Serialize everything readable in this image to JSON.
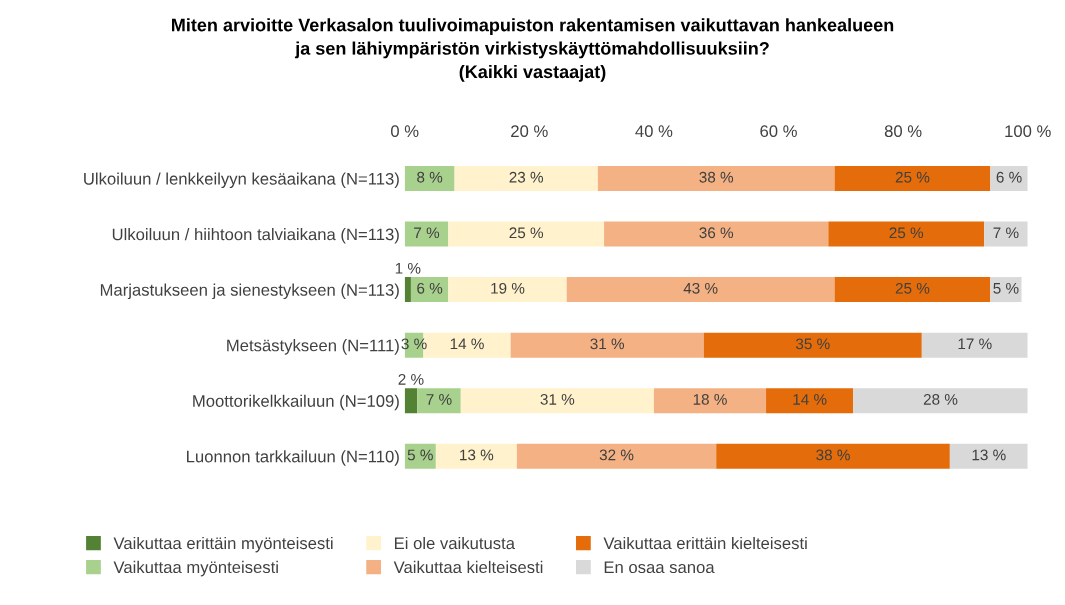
{
  "chart_data": {
    "type": "bar",
    "orientation": "horizontal",
    "stacked": true,
    "title": "Miten arvioitte Verkasalon tuulivoimapuiston rakentamisen vaikuttavan hankealueen\nja sen lähiympäristön virkistyskäyttömahdollisuuksiin?\n(Kaikki vastaajat)",
    "categories": [
      "Ulkoiluun / lenkkeilyyn kesäaikana (N=113)",
      "Ulkoiluun / hiihtoon talviaikana (N=113)",
      "Marjastukseen ja sienestykseen (N=113)",
      "Metsästykseen (N=111)",
      "Moottorikelkkailuun (N=109)",
      "Luonnon tarkkailuun (N=110)"
    ],
    "series": [
      {
        "name": "Vaikuttaa erittäin myönteisesti",
        "color": "#548235",
        "values": [
          null,
          null,
          1,
          null,
          2,
          null
        ],
        "value_labels": [
          null,
          null,
          "1 %",
          null,
          "2 %",
          null
        ]
      },
      {
        "name": "Vaikuttaa myönteisesti",
        "color": "#a9d18e",
        "values": [
          8,
          7,
          6,
          3,
          7,
          5
        ],
        "value_labels": [
          "8 %",
          "7 %",
          "6 %",
          "3 %",
          "7 %",
          "5 %"
        ]
      },
      {
        "name": "Ei ole vaikutusta",
        "color": "#fff2cc",
        "values": [
          23,
          25,
          19,
          14,
          31,
          13
        ],
        "value_labels": [
          "23 %",
          "25 %",
          "19 %",
          "14 %",
          "31 %",
          "13 %"
        ]
      },
      {
        "name": "Vaikuttaa kielteisesti",
        "color": "#f4b183",
        "values": [
          38,
          36,
          43,
          31,
          18,
          32
        ],
        "value_labels": [
          "38 %",
          "36 %",
          "43 %",
          "31 %",
          "18 %",
          "32 %"
        ]
      },
      {
        "name": "Vaikuttaa erittäin kielteisesti",
        "color": "#e46c0a",
        "values": [
          25,
          25,
          25,
          35,
          14,
          37.5
        ],
        "value_labels": [
          "25 %",
          "25 %",
          "25 %",
          "35 %",
          "14 %",
          "38 %"
        ]
      },
      {
        "name": "En osaa sanoa",
        "color": "#d9d9d9",
        "values": [
          6,
          7,
          5,
          17,
          28,
          12.5
        ],
        "value_labels": [
          "6 %",
          "7 %",
          "5 %",
          "17 %",
          "28 %",
          "13 %"
        ]
      }
    ],
    "xlim": [
      0,
      100
    ],
    "xticks": [
      {
        "value": 0,
        "label": "0 %"
      },
      {
        "value": 20,
        "label": "20 %"
      },
      {
        "value": 40,
        "label": "40 %"
      },
      {
        "value": 60,
        "label": "60 %"
      },
      {
        "value": 80,
        "label": "80 %"
      },
      {
        "value": 100,
        "label": "100 %"
      }
    ],
    "grid": false,
    "legend": "bottom"
  }
}
